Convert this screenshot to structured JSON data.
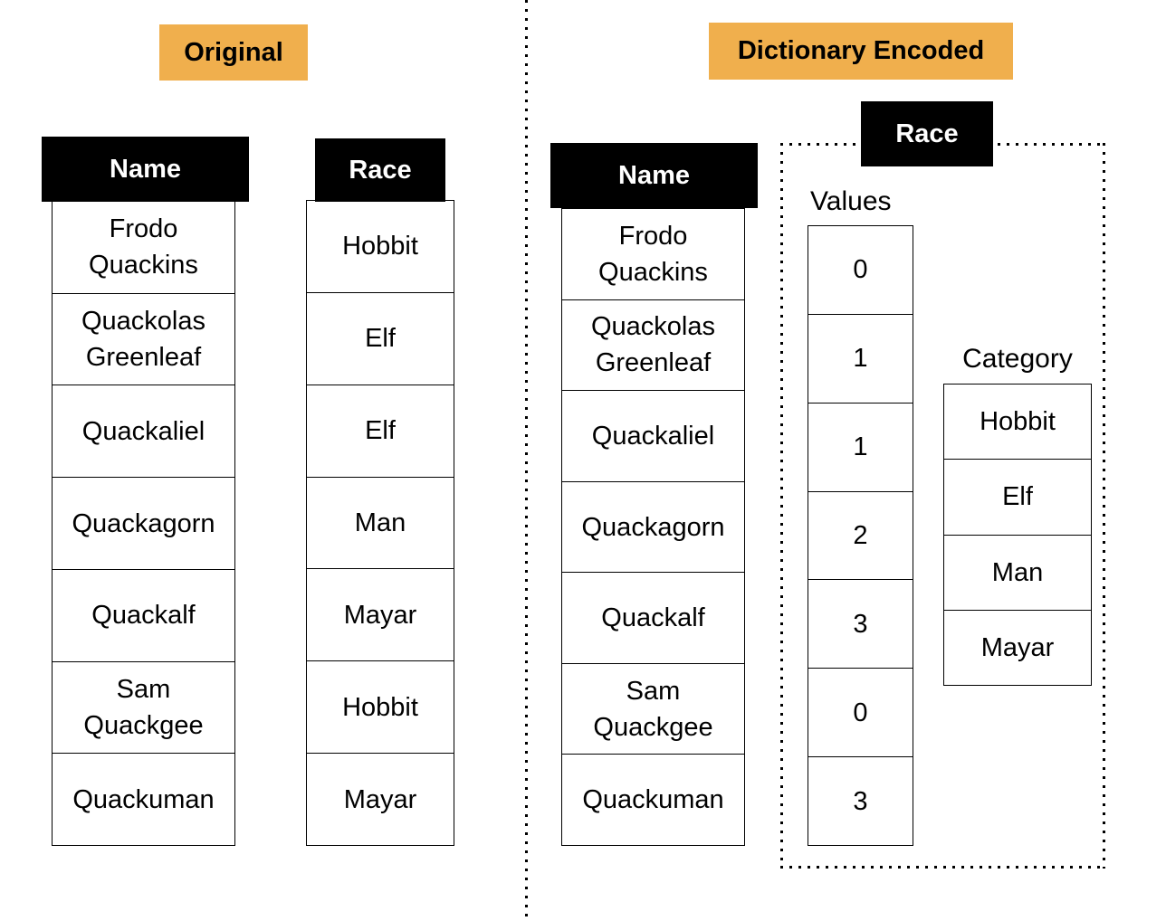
{
  "colors": {
    "accent": "#F0AF4D",
    "header_bg": "#000000",
    "header_text": "#FFFFFF",
    "border": "#000000",
    "background": "#FFFFFF"
  },
  "original_section": {
    "title": "Original",
    "name_table": {
      "header": "Name",
      "rows": [
        "Frodo\nQuackins",
        "Quackolas\nGreenleaf",
        "Quackaliel",
        "Quackagorn",
        "Quackalf",
        "Sam\nQuackgee",
        "Quackuman"
      ]
    },
    "race_table": {
      "header": "Race",
      "rows": [
        "Hobbit",
        "Elf",
        "Elf",
        "Man",
        "Mayar",
        "Hobbit",
        "Mayar"
      ]
    }
  },
  "encoded_section": {
    "title": "Dictionary Encoded",
    "name_table": {
      "header": "Name",
      "rows": [
        "Frodo\nQuackins",
        "Quackolas\nGreenleaf",
        "Quackaliel",
        "Quackagorn",
        "Quackalf",
        "Sam\nQuackgee",
        "Quackuman"
      ]
    },
    "race_group": {
      "header": "Race",
      "values_label": "Values",
      "values": [
        "0",
        "1",
        "1",
        "2",
        "3",
        "0",
        "3"
      ],
      "category_label": "Category",
      "categories": [
        "Hobbit",
        "Elf",
        "Man",
        "Mayar"
      ]
    }
  }
}
